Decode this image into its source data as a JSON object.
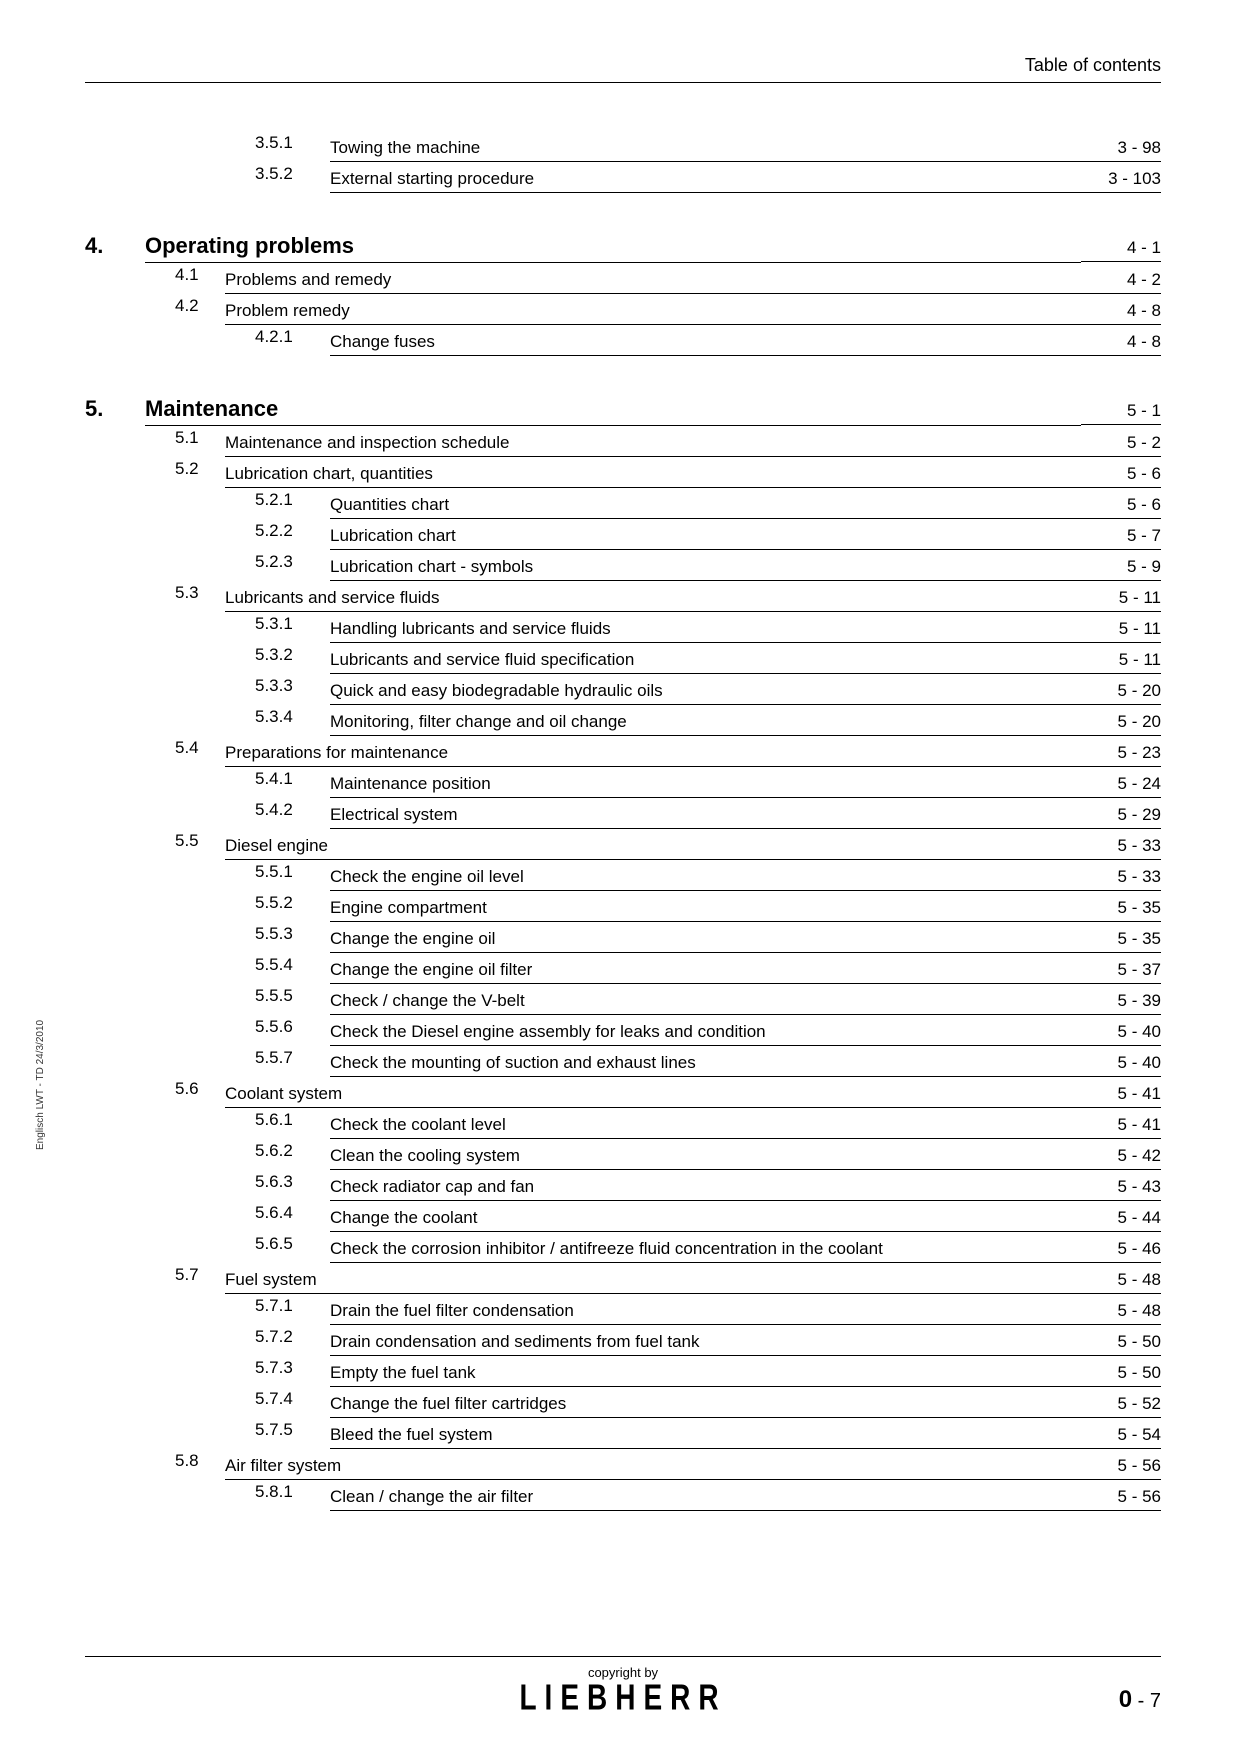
{
  "header": "Table of contents",
  "side_text": "Englisch  LWT - TD 24/3/2010",
  "copyright": "copyright by",
  "logo": "LIEBHERR",
  "page_section": "0",
  "page_number": "7",
  "toc": [
    {
      "level": 3,
      "num": "3.5.1",
      "title": "Towing the machine",
      "page": "3 - 98"
    },
    {
      "level": 3,
      "num": "3.5.2",
      "title": "External starting procedure",
      "page": "3 - 103"
    },
    {
      "level": 1,
      "num": "4.",
      "title": "Operating problems",
      "page": "4 - 1"
    },
    {
      "level": 2,
      "num": "4.1",
      "title": "Problems and remedy",
      "page": "4 - 2"
    },
    {
      "level": 2,
      "num": "4.2",
      "title": "Problem remedy",
      "page": "4 - 8"
    },
    {
      "level": 3,
      "num": "4.2.1",
      "title": "Change fuses",
      "page": "4 - 8"
    },
    {
      "level": 1,
      "num": "5.",
      "title": "Maintenance",
      "page": "5 - 1"
    },
    {
      "level": 2,
      "num": "5.1",
      "title": "Maintenance and inspection schedule",
      "page": "5 - 2"
    },
    {
      "level": 2,
      "num": "5.2",
      "title": "Lubrication chart, quantities",
      "page": "5 - 6"
    },
    {
      "level": 3,
      "num": "5.2.1",
      "title": "Quantities chart",
      "page": "5 - 6"
    },
    {
      "level": 3,
      "num": "5.2.2",
      "title": "Lubrication chart",
      "page": "5 - 7"
    },
    {
      "level": 3,
      "num": "5.2.3",
      "title": "Lubrication chart - symbols",
      "page": "5 - 9"
    },
    {
      "level": 2,
      "num": "5.3",
      "title": "Lubricants and service fluids",
      "page": "5 - 11"
    },
    {
      "level": 3,
      "num": "5.3.1",
      "title": "Handling lubricants and service fluids",
      "page": "5 - 11"
    },
    {
      "level": 3,
      "num": "5.3.2",
      "title": "Lubricants and service fluid specification",
      "page": "5 - 11"
    },
    {
      "level": 3,
      "num": "5.3.3",
      "title": "Quick and easy biodegradable hydraulic oils",
      "page": "5 - 20"
    },
    {
      "level": 3,
      "num": "5.3.4",
      "title": "Monitoring, filter change and oil change",
      "page": "5 - 20"
    },
    {
      "level": 2,
      "num": "5.4",
      "title": "Preparations for maintenance",
      "page": "5 - 23"
    },
    {
      "level": 3,
      "num": "5.4.1",
      "title": "Maintenance position",
      "page": "5 - 24"
    },
    {
      "level": 3,
      "num": "5.4.2",
      "title": "Electrical system",
      "page": "5 - 29"
    },
    {
      "level": 2,
      "num": "5.5",
      "title": "Diesel engine",
      "page": "5 - 33"
    },
    {
      "level": 3,
      "num": "5.5.1",
      "title": "Check the engine oil level",
      "page": "5 - 33"
    },
    {
      "level": 3,
      "num": "5.5.2",
      "title": "Engine compartment",
      "page": "5 - 35"
    },
    {
      "level": 3,
      "num": "5.5.3",
      "title": "Change the engine oil",
      "page": "5 - 35"
    },
    {
      "level": 3,
      "num": "5.5.4",
      "title": "Change the engine oil filter",
      "page": "5 - 37"
    },
    {
      "level": 3,
      "num": "5.5.5",
      "title": "Check / change the V-belt",
      "page": "5 - 39"
    },
    {
      "level": 3,
      "num": "5.5.6",
      "title": "Check the Diesel engine assembly for leaks and condition",
      "page": "5 - 40"
    },
    {
      "level": 3,
      "num": "5.5.7",
      "title": "Check the mounting of suction and exhaust lines",
      "page": "5 - 40"
    },
    {
      "level": 2,
      "num": "5.6",
      "title": "Coolant system",
      "page": "5 - 41"
    },
    {
      "level": 3,
      "num": "5.6.1",
      "title": "Check the coolant level",
      "page": "5 - 41"
    },
    {
      "level": 3,
      "num": "5.6.2",
      "title": "Clean the cooling system",
      "page": "5 - 42"
    },
    {
      "level": 3,
      "num": "5.6.3",
      "title": "Check radiator cap and fan",
      "page": "5 - 43"
    },
    {
      "level": 3,
      "num": "5.6.4",
      "title": "Change the coolant",
      "page": "5 - 44"
    },
    {
      "level": 3,
      "num": "5.6.5",
      "title": "Check the corrosion inhibitor / antifreeze fluid concentration in the coolant",
      "page": "5 - 46"
    },
    {
      "level": 2,
      "num": "5.7",
      "title": "Fuel system",
      "page": "5 - 48"
    },
    {
      "level": 3,
      "num": "5.7.1",
      "title": "Drain the fuel filter condensation",
      "page": "5 - 48"
    },
    {
      "level": 3,
      "num": "5.7.2",
      "title": "Drain condensation and sediments from fuel tank",
      "page": "5 - 50"
    },
    {
      "level": 3,
      "num": "5.7.3",
      "title": "Empty the fuel tank",
      "page": "5 - 50"
    },
    {
      "level": 3,
      "num": "5.7.4",
      "title": "Change the fuel filter cartridges",
      "page": "5 - 52"
    },
    {
      "level": 3,
      "num": "5.7.5",
      "title": "Bleed the fuel system",
      "page": "5 - 54"
    },
    {
      "level": 2,
      "num": "5.8",
      "title": "Air filter system",
      "page": "5 - 56"
    },
    {
      "level": 3,
      "num": "5.8.1",
      "title": "Clean / change the air filter",
      "page": "5 - 56"
    }
  ]
}
